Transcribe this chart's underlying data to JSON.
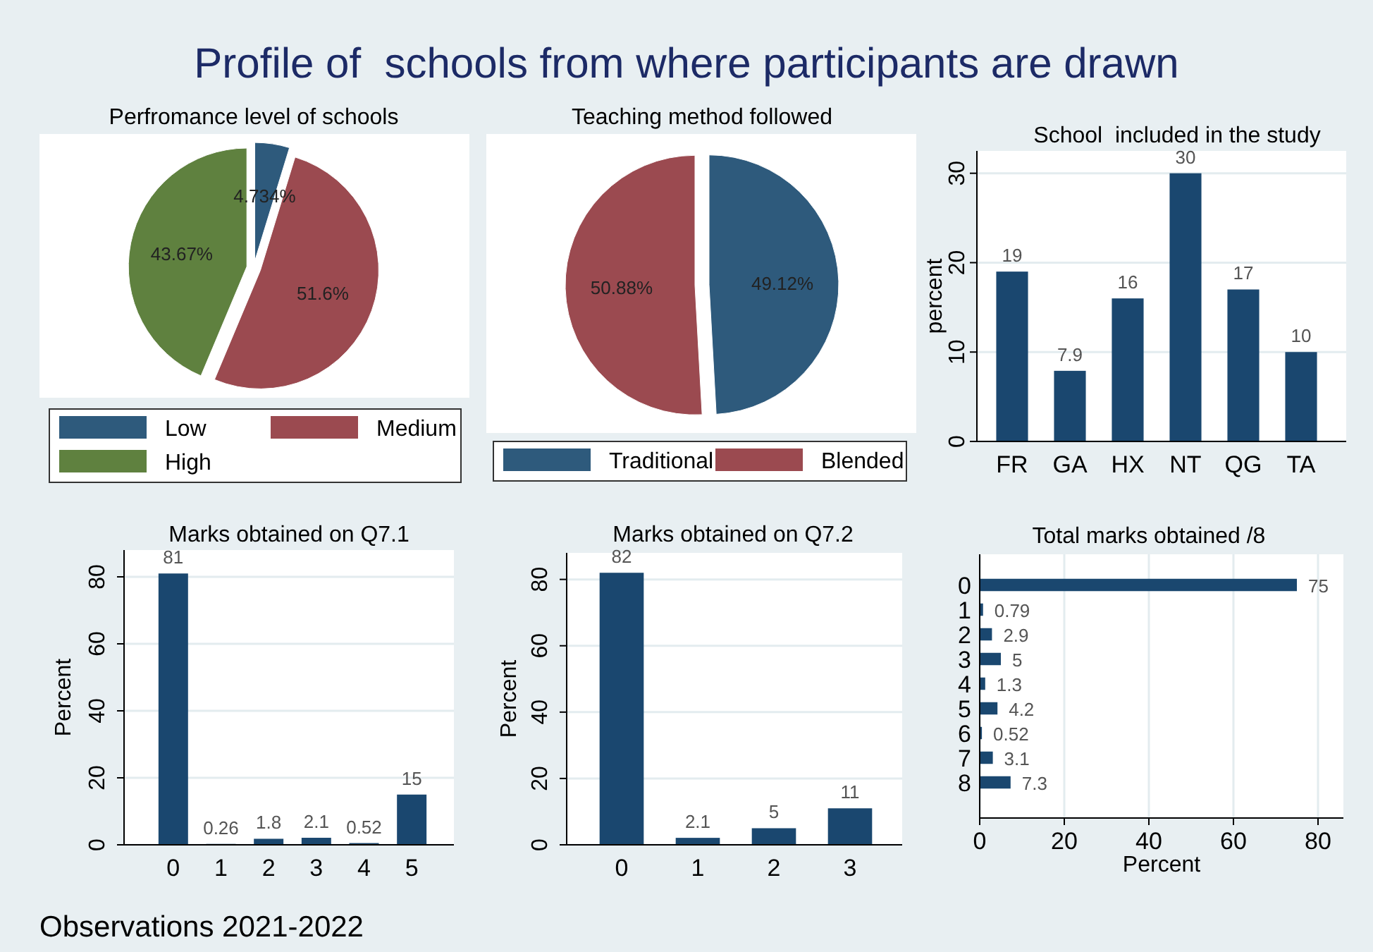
{
  "chart_data": [
    {
      "type": "other",
      "title": "Profile of  schools from where participants are drawn",
      "annotations": [
        "Observations 2021-2022"
      ]
    },
    {
      "type": "pie",
      "title": "Perfromance level of schools",
      "categories": [
        "Low",
        "Medium",
        "High"
      ],
      "values": [
        4.734,
        51.6,
        43.67
      ],
      "colors": [
        "#2e5a7c",
        "#9b4a50",
        "#5f813f"
      ],
      "value_labels": [
        "4.734%",
        "51.6%",
        "43.67%"
      ],
      "legend": "bottom"
    },
    {
      "type": "pie",
      "title": "Teaching method followed",
      "categories": [
        "Traditional",
        "Blended"
      ],
      "values": [
        49.12,
        50.88
      ],
      "colors": [
        "#2e5a7c",
        "#9b4a50"
      ],
      "value_labels": [
        "49.12%",
        "50.88%"
      ],
      "legend": "bottom"
    },
    {
      "type": "bar",
      "title": "School  included in the study",
      "ylabel": "percent",
      "categories": [
        "FR",
        "GA",
        "HX",
        "NT",
        "QG",
        "TA"
      ],
      "values": [
        19,
        7.9,
        16,
        30,
        17,
        10
      ],
      "color": "#1a476f",
      "ylim": [
        0,
        32.5
      ],
      "yticks": [
        0,
        10,
        20,
        30
      ],
      "grid": "y",
      "data_labels": true
    },
    {
      "type": "bar",
      "title": "Marks obtained on Q7.1",
      "ylabel": "Percent",
      "categories": [
        "0",
        "1",
        "2",
        "3",
        "4",
        "5"
      ],
      "values": [
        81,
        0.26,
        1.8,
        2.1,
        0.52,
        15
      ],
      "color": "#1a476f",
      "ylim": [
        0,
        88
      ],
      "yticks": [
        0,
        20,
        40,
        60,
        80
      ],
      "grid": "y",
      "data_labels": true
    },
    {
      "type": "bar",
      "title": "Marks obtained on Q7.2",
      "ylabel": "Percent",
      "categories": [
        "0",
        "1",
        "2",
        "3"
      ],
      "values": [
        82,
        2.1,
        5,
        11
      ],
      "color": "#1a476f",
      "ylim": [
        0,
        88
      ],
      "yticks": [
        0,
        20,
        40,
        60,
        80
      ],
      "grid": "y",
      "data_labels": true
    },
    {
      "type": "bar",
      "orientation": "horizontal",
      "title": "Total marks obtained /8",
      "xlabel": "Percent",
      "categories": [
        "0",
        "1",
        "2",
        "3",
        "4",
        "5",
        "6",
        "7",
        "8"
      ],
      "values": [
        75,
        0.79,
        2.9,
        5,
        1.3,
        4.2,
        0.52,
        3.1,
        7.3
      ],
      "color": "#1a476f",
      "xlim": [
        0,
        86
      ],
      "xticks": [
        0,
        20,
        40,
        60,
        80
      ],
      "grid": "x",
      "data_labels": true
    }
  ]
}
